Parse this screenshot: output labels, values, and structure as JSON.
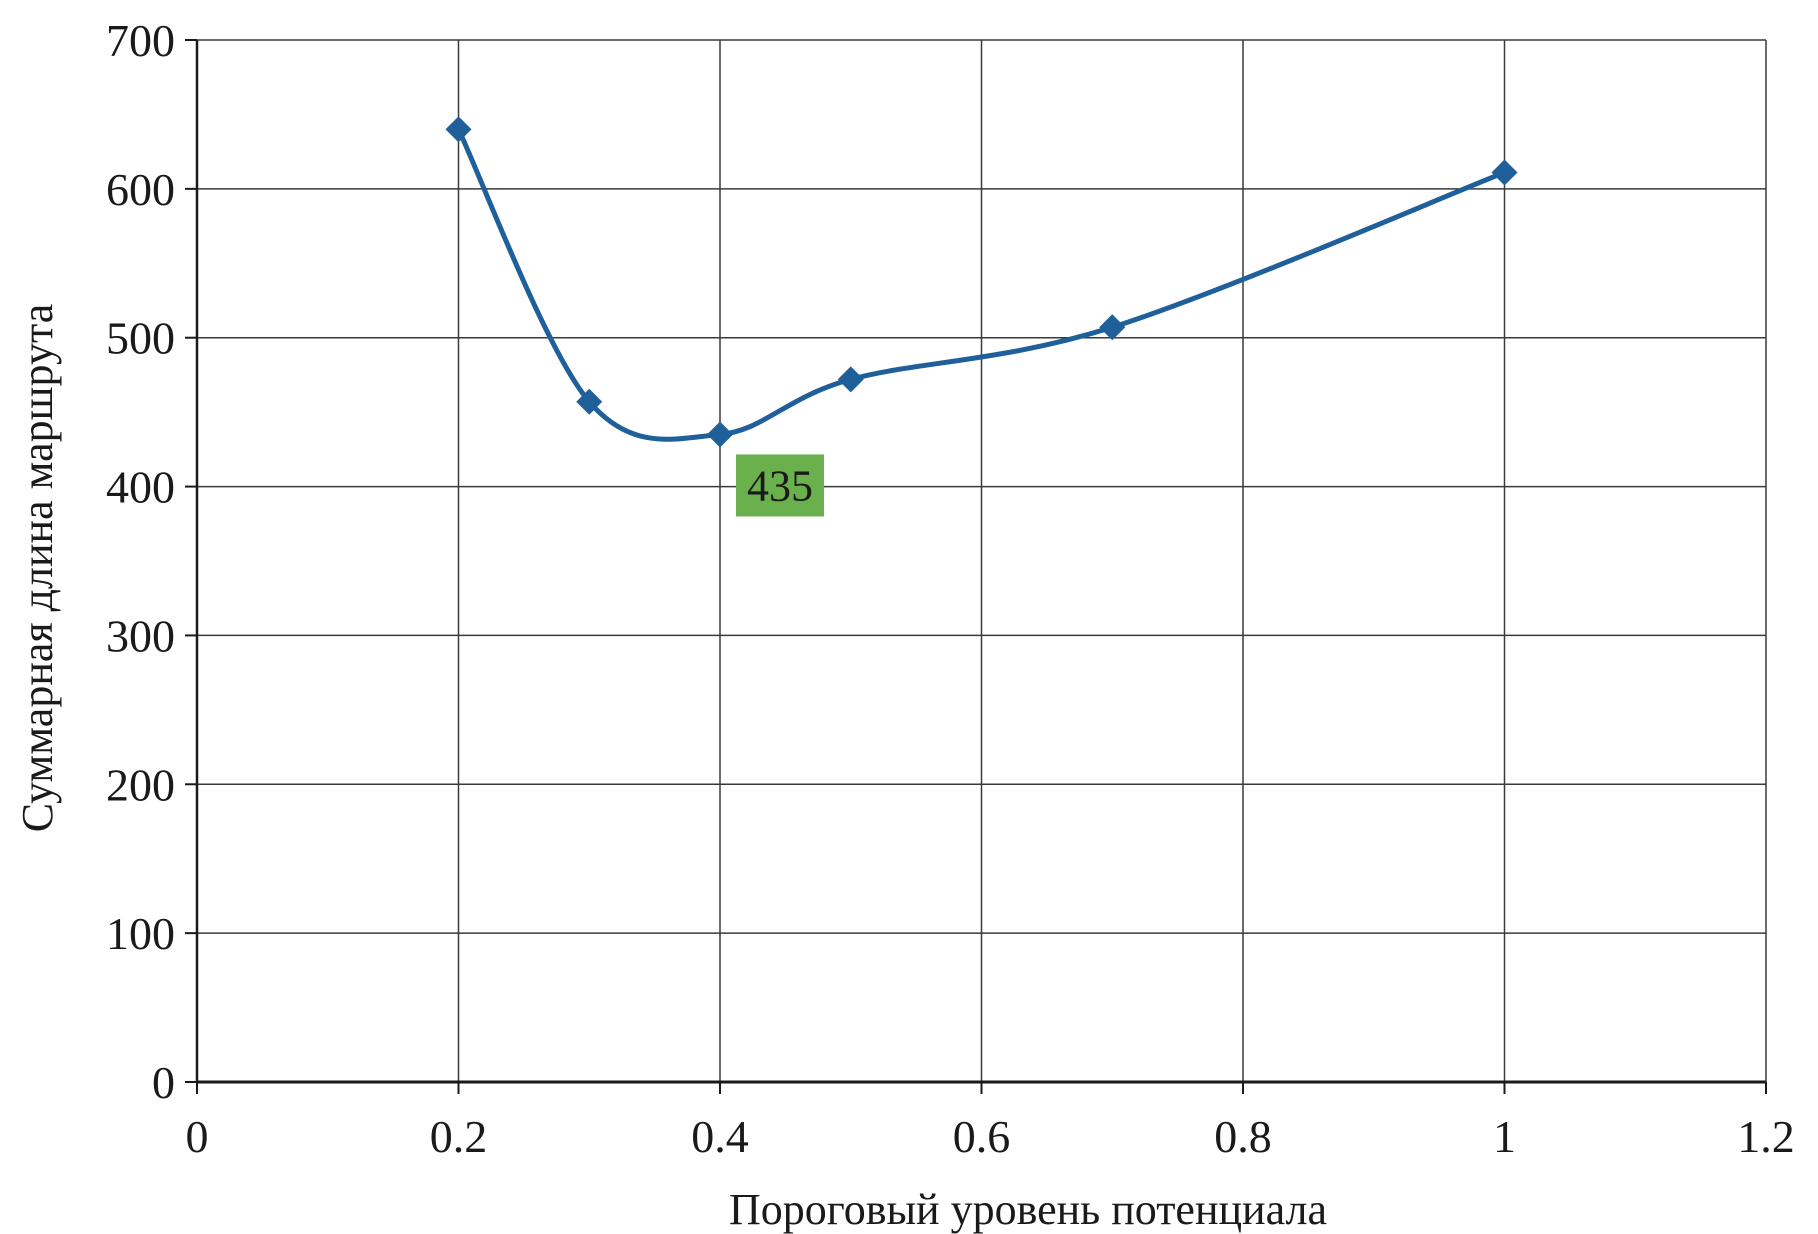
{
  "chart_data": {
    "type": "line",
    "title": "",
    "xlabel": "Пороговый уровень потенциала",
    "ylabel": "Суммарная длина маршрута",
    "xlim": [
      0,
      1.2
    ],
    "ylim": [
      0,
      700
    ],
    "x_ticks": [
      0,
      0.2,
      0.4,
      0.6,
      0.8,
      1,
      1.2
    ],
    "x_tick_labels": [
      "0",
      "0.2",
      "0.4",
      "0.6",
      "0.8",
      "1",
      "1.2"
    ],
    "y_ticks": [
      0,
      100,
      200,
      300,
      400,
      500,
      600,
      700
    ],
    "y_tick_labels": [
      "0",
      "100",
      "200",
      "300",
      "400",
      "500",
      "600",
      "700"
    ],
    "grid": true,
    "legend": "none",
    "series": [
      {
        "x": [
          0.2,
          0.3,
          0.4,
          0.5,
          0.7,
          1.0
        ],
        "y": [
          640,
          457,
          435,
          472,
          507,
          611
        ],
        "color": "#1f5f9a",
        "marker": "diamond",
        "smooth": true
      }
    ],
    "annotations": [
      {
        "text": "435",
        "x": 0.4,
        "y": 435,
        "background": "#6ab04c"
      }
    ]
  }
}
